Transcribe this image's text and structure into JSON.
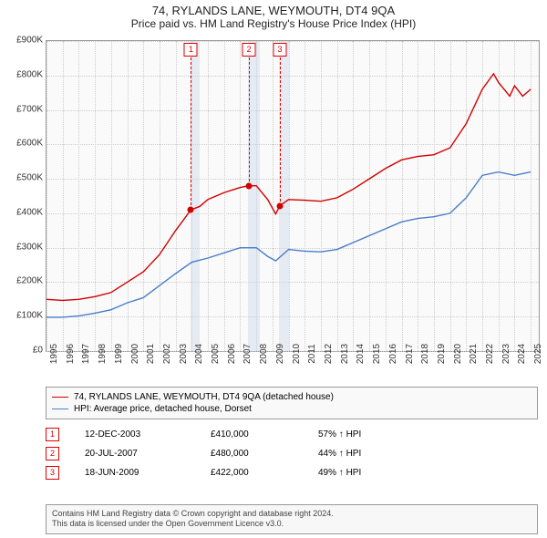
{
  "header": {
    "title": "74, RYLANDS LANE, WEYMOUTH, DT4 9QA",
    "subtitle": "Price paid vs. HM Land Registry's House Price Index (HPI)"
  },
  "chart": {
    "type": "line",
    "background_color": "#fafafa",
    "plot_border_color": "#999999",
    "grid_color": "#cccccc",
    "x_range": [
      1995,
      2025.5
    ],
    "y_range": [
      0,
      900000
    ],
    "y_ticks": [
      0,
      100000,
      200000,
      300000,
      400000,
      500000,
      600000,
      700000,
      800000,
      900000
    ],
    "y_tick_labels": [
      "£0",
      "£100K",
      "£200K",
      "£300K",
      "£400K",
      "£500K",
      "£600K",
      "£700K",
      "£800K",
      "£900K"
    ],
    "x_ticks": [
      1995,
      1996,
      1997,
      1998,
      1999,
      2000,
      2001,
      2002,
      2003,
      2004,
      2005,
      2006,
      2007,
      2008,
      2009,
      2010,
      2011,
      2012,
      2013,
      2014,
      2015,
      2016,
      2017,
      2018,
      2019,
      2020,
      2021,
      2022,
      2023,
      2024,
      2025
    ],
    "tick_fontsize": 10,
    "line_width": 1.4,
    "shaded_regions": [
      {
        "from": 2003.95,
        "to": 2004.5,
        "color": "rgba(200,210,230,0.4)"
      },
      {
        "from": 2007.5,
        "to": 2008.2,
        "color": "rgba(200,210,230,0.4)"
      },
      {
        "from": 2009.4,
        "to": 2010.0,
        "color": "rgba(200,210,230,0.4)"
      }
    ],
    "series": [
      {
        "name": "price_paid",
        "color": "#d00000",
        "points": [
          [
            1995,
            150000
          ],
          [
            1996,
            147000
          ],
          [
            1997,
            150000
          ],
          [
            1998,
            158000
          ],
          [
            1999,
            170000
          ],
          [
            2000,
            200000
          ],
          [
            2001,
            230000
          ],
          [
            2002,
            280000
          ],
          [
            2003,
            350000
          ],
          [
            2003.95,
            410000
          ],
          [
            2004.5,
            420000
          ],
          [
            2005,
            440000
          ],
          [
            2006,
            460000
          ],
          [
            2007,
            475000
          ],
          [
            2007.55,
            480000
          ],
          [
            2008,
            480000
          ],
          [
            2008.7,
            440000
          ],
          [
            2009.2,
            398000
          ],
          [
            2009.46,
            422000
          ],
          [
            2010,
            440000
          ],
          [
            2011,
            438000
          ],
          [
            2012,
            435000
          ],
          [
            2013,
            445000
          ],
          [
            2014,
            470000
          ],
          [
            2015,
            500000
          ],
          [
            2016,
            530000
          ],
          [
            2017,
            555000
          ],
          [
            2018,
            565000
          ],
          [
            2019,
            570000
          ],
          [
            2020,
            590000
          ],
          [
            2021,
            660000
          ],
          [
            2022,
            760000
          ],
          [
            2022.7,
            805000
          ],
          [
            2023,
            780000
          ],
          [
            2023.7,
            740000
          ],
          [
            2024,
            770000
          ],
          [
            2024.5,
            740000
          ],
          [
            2025,
            760000
          ]
        ]
      },
      {
        "name": "hpi",
        "color": "#4a7ec9",
        "points": [
          [
            1995,
            98000
          ],
          [
            1996,
            98000
          ],
          [
            1997,
            102000
          ],
          [
            1998,
            110000
          ],
          [
            1999,
            120000
          ],
          [
            2000,
            140000
          ],
          [
            2001,
            155000
          ],
          [
            2002,
            190000
          ],
          [
            2003,
            225000
          ],
          [
            2004,
            258000
          ],
          [
            2005,
            270000
          ],
          [
            2006,
            285000
          ],
          [
            2007,
            300000
          ],
          [
            2008,
            300000
          ],
          [
            2008.7,
            275000
          ],
          [
            2009.2,
            262000
          ],
          [
            2010,
            295000
          ],
          [
            2011,
            290000
          ],
          [
            2012,
            288000
          ],
          [
            2013,
            295000
          ],
          [
            2014,
            315000
          ],
          [
            2015,
            335000
          ],
          [
            2016,
            355000
          ],
          [
            2017,
            375000
          ],
          [
            2018,
            385000
          ],
          [
            2019,
            390000
          ],
          [
            2020,
            400000
          ],
          [
            2021,
            445000
          ],
          [
            2022,
            510000
          ],
          [
            2023,
            520000
          ],
          [
            2024,
            510000
          ],
          [
            2025,
            520000
          ]
        ]
      }
    ],
    "sale_points": [
      {
        "n": "1",
        "x": 2003.95,
        "y": 410000,
        "color": "#d00000"
      },
      {
        "n": "2",
        "x": 2007.55,
        "y": 480000,
        "color": "#d00000"
      },
      {
        "n": "3",
        "x": 2009.46,
        "y": 422000,
        "color": "#d00000"
      }
    ]
  },
  "legend": {
    "items": [
      {
        "color": "#d00000",
        "label": "74, RYLANDS LANE, WEYMOUTH, DT4 9QA (detached house)"
      },
      {
        "color": "#4a7ec9",
        "label": "HPI: Average price, detached house, Dorset"
      }
    ]
  },
  "sales": [
    {
      "n": "1",
      "date": "12-DEC-2003",
      "price": "£410,000",
      "pct": "57% ↑ HPI"
    },
    {
      "n": "2",
      "date": "20-JUL-2007",
      "price": "£480,000",
      "pct": "44% ↑ HPI"
    },
    {
      "n": "3",
      "date": "18-JUN-2009",
      "price": "£422,000",
      "pct": "49% ↑ HPI"
    }
  ],
  "attribution": {
    "line1": "Contains HM Land Registry data © Crown copyright and database right 2024.",
    "line2": "This data is licensed under the Open Government Licence v3.0."
  }
}
